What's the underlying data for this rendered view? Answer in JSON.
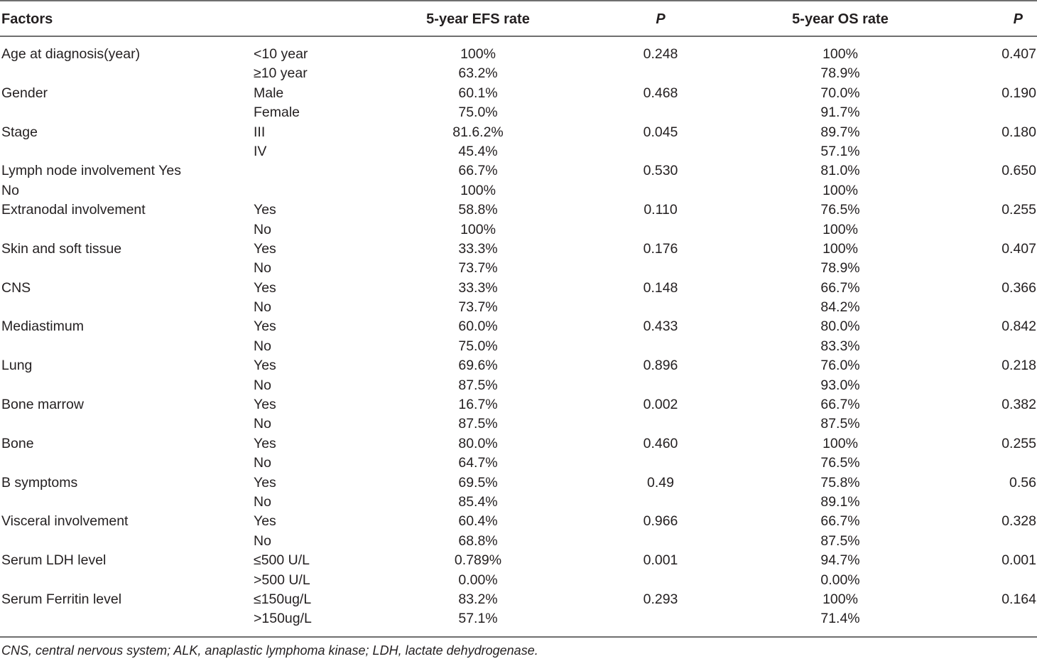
{
  "table": {
    "headers": {
      "factors": "Factors",
      "efs": "5-year EFS rate",
      "p1": "P",
      "os": "5-year OS rate",
      "p2": "P"
    },
    "rows": [
      {
        "factor": "Age at diagnosis(year)",
        "sub": "<10 year",
        "efs": "100%",
        "p1": "0.248",
        "os": "100%",
        "p2": "0.407"
      },
      {
        "factor": "",
        "sub": "≥10 year",
        "efs": "63.2%",
        "p1": "",
        "os": "78.9%",
        "p2": ""
      },
      {
        "factor": "Gender",
        "sub": "Male",
        "efs": "60.1%",
        "p1": "0.468",
        "os": "70.0%",
        "p2": "0.190"
      },
      {
        "factor": "",
        "sub": "Female",
        "efs": "75.0%",
        "p1": "",
        "os": "91.7%",
        "p2": ""
      },
      {
        "factor": "Stage",
        "sub": "III",
        "efs": "81.6.2%",
        "p1": "0.045",
        "os": "89.7%",
        "p2": "0.180"
      },
      {
        "factor": "",
        "sub": "IV",
        "efs": "45.4%",
        "p1": "",
        "os": "57.1%",
        "p2": ""
      },
      {
        "factor": "Lymph node involvement Yes",
        "sub": "",
        "efs": "66.7%",
        "p1": "0.530",
        "os": "81.0%",
        "p2": "0.650"
      },
      {
        "factor": "No",
        "sub": "",
        "efs": "100%",
        "p1": "",
        "os": "100%",
        "p2": ""
      },
      {
        "factor": "Extranodal involvement",
        "sub": "Yes",
        "efs": "58.8%",
        "p1": "0.110",
        "os": "76.5%",
        "p2": "0.255"
      },
      {
        "factor": "",
        "sub": "No",
        "efs": "100%",
        "p1": "",
        "os": "100%",
        "p2": ""
      },
      {
        "factor": "Skin and soft tissue",
        "sub": "Yes",
        "efs": "33.3%",
        "p1": "0.176",
        "os": "100%",
        "p2": "0.407"
      },
      {
        "factor": "",
        "sub": "No",
        "efs": "73.7%",
        "p1": "",
        "os": "78.9%",
        "p2": ""
      },
      {
        "factor": "CNS",
        "sub": "Yes",
        "efs": "33.3%",
        "p1": "0.148",
        "os": "66.7%",
        "p2": "0.366"
      },
      {
        "factor": "",
        "sub": "No",
        "efs": "73.7%",
        "p1": "",
        "os": "84.2%",
        "p2": ""
      },
      {
        "factor": "Mediastimum",
        "sub": "Yes",
        "efs": "60.0%",
        "p1": "0.433",
        "os": "80.0%",
        "p2": "0.842"
      },
      {
        "factor": "",
        "sub": "No",
        "efs": "75.0%",
        "p1": "",
        "os": "83.3%",
        "p2": ""
      },
      {
        "factor": "Lung",
        "sub": "Yes",
        "efs": "69.6%",
        "p1": "0.896",
        "os": "76.0%",
        "p2": "0.218"
      },
      {
        "factor": "",
        "sub": "No",
        "efs": "87.5%",
        "p1": "",
        "os": "93.0%",
        "p2": ""
      },
      {
        "factor": "Bone marrow",
        "sub": "Yes",
        "efs": "16.7%",
        "p1": "0.002",
        "os": "66.7%",
        "p2": "0.382"
      },
      {
        "factor": "",
        "sub": "No",
        "efs": "87.5%",
        "p1": "",
        "os": "87.5%",
        "p2": ""
      },
      {
        "factor": "Bone",
        "sub": "Yes",
        "efs": "80.0%",
        "p1": "0.460",
        "os": "100%",
        "p2": "0.255"
      },
      {
        "factor": "",
        "sub": "No",
        "efs": "64.7%",
        "p1": "",
        "os": "76.5%",
        "p2": ""
      },
      {
        "factor": "B symptoms",
        "sub": "Yes",
        "efs": "69.5%",
        "p1": "0.49",
        "os": "75.8%",
        "p2": "0.56"
      },
      {
        "factor": "",
        "sub": "No",
        "efs": "85.4%",
        "p1": "",
        "os": "89.1%",
        "p2": ""
      },
      {
        "factor": "Visceral involvement",
        "sub": "Yes",
        "efs": "60.4%",
        "p1": "0.966",
        "os": "66.7%",
        "p2": "0.328"
      },
      {
        "factor": "",
        "sub": "No",
        "efs": "68.8%",
        "p1": "",
        "os": "87.5%",
        "p2": ""
      },
      {
        "factor": "Serum LDH level",
        "sub": "≤500 U/L",
        "efs": "0.789%",
        "p1": "0.001",
        "os": "94.7%",
        "p2": "0.001"
      },
      {
        "factor": "",
        "sub": ">500 U/L",
        "efs": "0.00%",
        "p1": "",
        "os": "0.00%",
        "p2": ""
      },
      {
        "factor": "Serum Ferritin level",
        "sub": "≤150ug/L",
        "efs": "83.2%",
        "p1": "0.293",
        "os": "100%",
        "p2": "0.164"
      },
      {
        "factor": "",
        "sub": ">150ug/L",
        "efs": "57.1%",
        "p1": "",
        "os": "71.4%",
        "p2": ""
      }
    ]
  },
  "footnote": "CNS, central nervous system; ALK, anaplastic lymphoma kinase; LDH, lactate dehydrogenase."
}
